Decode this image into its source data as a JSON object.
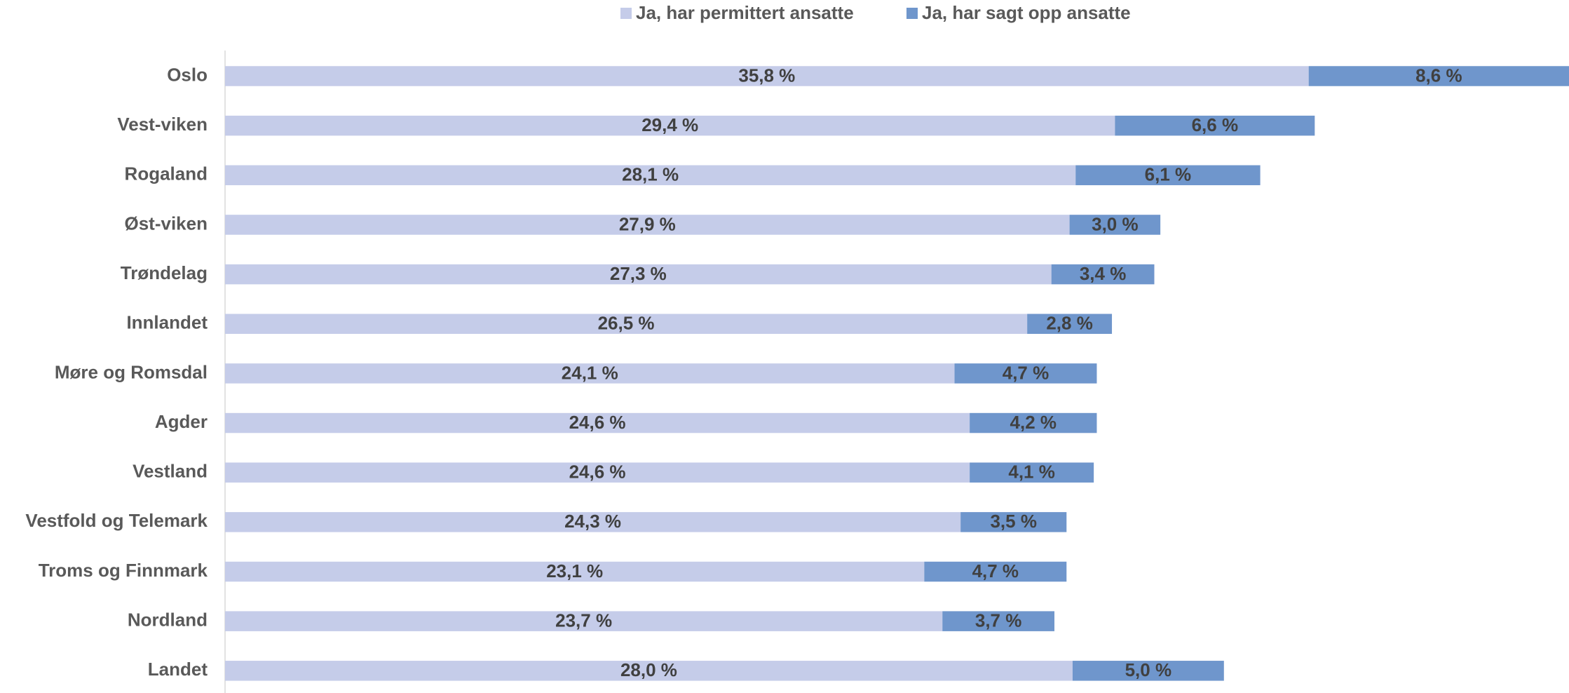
{
  "chart_data": {
    "type": "stacked-bar-horizontal",
    "categories": [
      "Oslo",
      "Vest-viken",
      "Rogaland",
      "Øst-viken",
      "Trøndelag",
      "Innlandet",
      "Møre og Romsdal",
      "Agder",
      "Vestland",
      "Vestfold og Telemark",
      "Troms og Finnmark",
      "Nordland",
      "Landet"
    ],
    "series": [
      {
        "name": "Ja, har permittert ansatte",
        "color": "#c5cce9",
        "values": [
          35.8,
          29.4,
          28.1,
          27.9,
          27.3,
          26.5,
          24.1,
          24.6,
          24.6,
          24.3,
          23.1,
          23.7,
          28.0
        ],
        "value_labels": [
          "35,8 %",
          "29,4 %",
          "28,1 %",
          "27,9 %",
          "27,3 %",
          "26,5 %",
          "24,1 %",
          "24,6 %",
          "24,6 %",
          "24,3 %",
          "23,1 %",
          "23,7 %",
          "28,0 %"
        ]
      },
      {
        "name": "Ja, har sagt opp ansatte",
        "color": "#6f96cc",
        "values": [
          8.6,
          6.6,
          6.1,
          3.0,
          3.4,
          2.8,
          4.7,
          4.2,
          4.1,
          3.5,
          4.7,
          3.7,
          5.0
        ],
        "value_labels": [
          "8,6 %",
          "6,6 %",
          "6,1 %",
          "3,0 %",
          "3,4 %",
          "2,8 %",
          "4,7 %",
          "4,2 %",
          "4,1 %",
          "3,5 %",
          "4,7 %",
          "3,7 %",
          "5,0 %"
        ]
      }
    ],
    "legend": "top"
  }
}
